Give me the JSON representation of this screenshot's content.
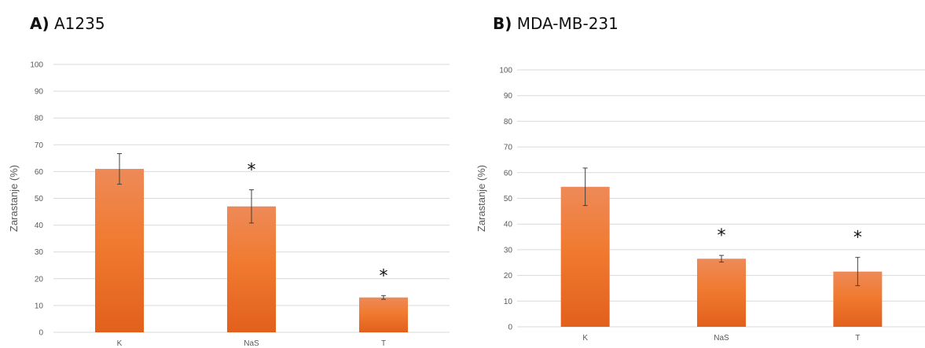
{
  "charts": [
    {
      "panel_letter": "A)",
      "panel_name": "A1235"
    },
    {
      "panel_letter": "B)",
      "panel_name": "MDA-MB-231"
    }
  ],
  "chart_data": [
    {
      "type": "bar",
      "title": "A) A1235",
      "ylabel": "Zarastanje (%)",
      "xlabel": "",
      "categories": [
        "K",
        "NaS",
        "T"
      ],
      "values": [
        61,
        47,
        13
      ],
      "errors": [
        5.7,
        6.2,
        0.7
      ],
      "significance": [
        "",
        "*",
        "*"
      ],
      "ylim": [
        0,
        100
      ],
      "yticks": [
        "0",
        "10",
        "20",
        "30",
        "40",
        "50",
        "60",
        "70",
        "80",
        "90",
        "100"
      ],
      "grid": true,
      "bar_color": "#ED7D31"
    },
    {
      "type": "bar",
      "title": "B) MDA-MB-231",
      "ylabel": "Zarastanje (%)",
      "xlabel": "",
      "categories": [
        "K",
        "NaS",
        "T"
      ],
      "values": [
        54.5,
        26.5,
        21.5
      ],
      "errors": [
        7.3,
        1.3,
        5.5
      ],
      "significance": [
        "",
        "*",
        "*"
      ],
      "ylim": [
        0,
        100
      ],
      "yticks": [
        "0",
        "10",
        "20",
        "30",
        "40",
        "50",
        "60",
        "70",
        "80",
        "90",
        "100"
      ],
      "grid": true,
      "bar_color": "#ED7D31"
    }
  ]
}
